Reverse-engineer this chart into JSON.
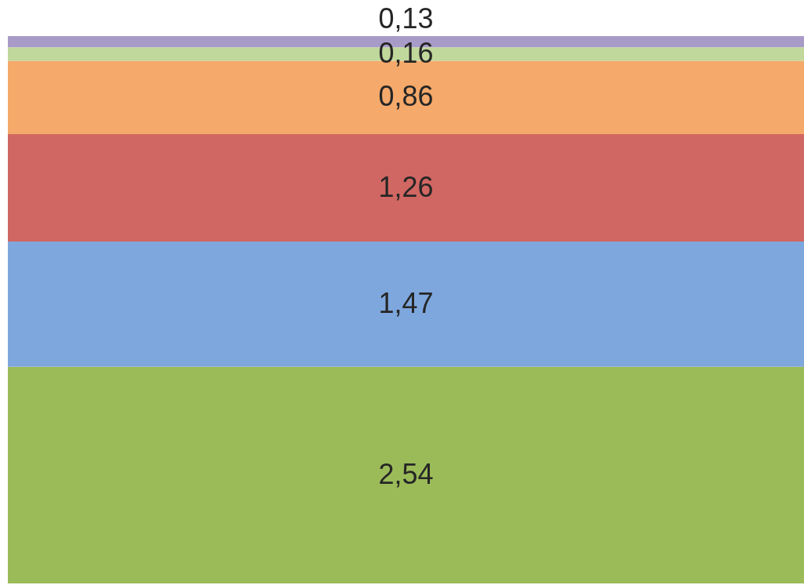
{
  "chart_data": {
    "type": "bar",
    "stacked": true,
    "categories": [
      null
    ],
    "series": [
      {
        "color": "#9bbb59",
        "values": [
          2.54
        ],
        "value_labels": [
          "2,54"
        ]
      },
      {
        "color": "#7ea7dd",
        "values": [
          1.47
        ],
        "value_labels": [
          "1,47"
        ]
      },
      {
        "color": "#d16762",
        "values": [
          1.26
        ],
        "value_labels": [
          "1,26"
        ]
      },
      {
        "color": "#f5a96a",
        "values": [
          0.86
        ],
        "value_labels": [
          "0,86"
        ]
      },
      {
        "color": "#c0d89c",
        "values": [
          0.16
        ],
        "value_labels": [
          "0,16"
        ]
      },
      {
        "color": "#a99bc8",
        "values": [
          0.13
        ],
        "value_labels": [
          "0,13"
        ]
      }
    ]
  }
}
